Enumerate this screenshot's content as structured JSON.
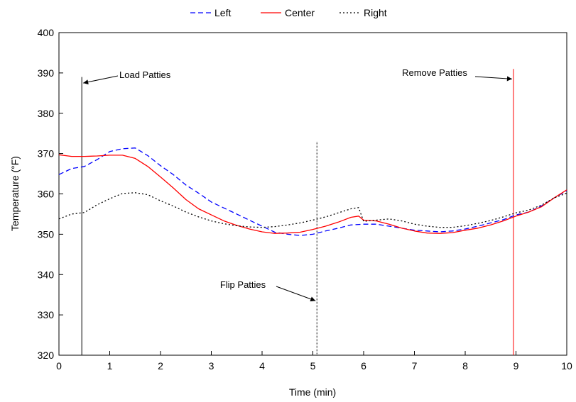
{
  "chart_data": {
    "type": "line",
    "xlabel": "Time (min)",
    "ylabel": "Temperature (°F)",
    "xlim": [
      0,
      10
    ],
    "ylim": [
      320,
      400
    ],
    "xticks": [
      0,
      1,
      2,
      3,
      4,
      5,
      6,
      7,
      8,
      9,
      10
    ],
    "yticks": [
      320,
      330,
      340,
      350,
      360,
      370,
      380,
      390,
      400
    ],
    "grid": false,
    "legend_position": "top-center",
    "series": [
      {
        "name": "Left",
        "color": "#0000ff",
        "dash": "dashed",
        "points": [
          [
            0,
            364.8
          ],
          [
            0.25,
            366.3
          ],
          [
            0.5,
            366.8
          ],
          [
            0.75,
            368.5
          ],
          [
            1.0,
            370.5
          ],
          [
            1.25,
            371.2
          ],
          [
            1.5,
            371.4
          ],
          [
            1.75,
            369.5
          ],
          [
            2.0,
            367.0
          ],
          [
            2.25,
            364.8
          ],
          [
            2.5,
            362.2
          ],
          [
            2.75,
            360.2
          ],
          [
            3.0,
            358.0
          ],
          [
            3.25,
            356.5
          ],
          [
            3.5,
            355.0
          ],
          [
            3.75,
            353.5
          ],
          [
            4.0,
            352.0
          ],
          [
            4.25,
            350.5
          ],
          [
            4.5,
            350.0
          ],
          [
            4.75,
            349.7
          ],
          [
            5.0,
            350.0
          ],
          [
            5.25,
            350.8
          ],
          [
            5.5,
            351.5
          ],
          [
            5.75,
            352.3
          ],
          [
            6.0,
            352.5
          ],
          [
            6.25,
            352.5
          ],
          [
            6.5,
            352.0
          ],
          [
            6.75,
            351.5
          ],
          [
            7.0,
            351.0
          ],
          [
            7.25,
            350.8
          ],
          [
            7.5,
            350.6
          ],
          [
            7.75,
            350.8
          ],
          [
            8.0,
            351.3
          ],
          [
            8.25,
            352.0
          ],
          [
            8.5,
            352.8
          ],
          [
            8.75,
            353.6
          ],
          [
            9.0,
            354.8
          ],
          [
            9.25,
            355.5
          ],
          [
            9.5,
            357.0
          ],
          [
            9.75,
            359.0
          ],
          [
            10.0,
            360.8
          ]
        ]
      },
      {
        "name": "Center",
        "color": "#ff0000",
        "dash": "solid",
        "points": [
          [
            0,
            369.7
          ],
          [
            0.25,
            369.3
          ],
          [
            0.5,
            369.3
          ],
          [
            0.75,
            369.4
          ],
          [
            1.0,
            369.6
          ],
          [
            1.25,
            369.6
          ],
          [
            1.5,
            368.8
          ],
          [
            1.75,
            366.8
          ],
          [
            2.0,
            364.2
          ],
          [
            2.25,
            361.5
          ],
          [
            2.5,
            358.6
          ],
          [
            2.75,
            356.3
          ],
          [
            3.0,
            354.8
          ],
          [
            3.25,
            353.3
          ],
          [
            3.5,
            352.2
          ],
          [
            3.75,
            351.3
          ],
          [
            4.0,
            350.6
          ],
          [
            4.25,
            350.2
          ],
          [
            4.5,
            350.3
          ],
          [
            4.75,
            350.5
          ],
          [
            5.0,
            351.2
          ],
          [
            5.25,
            352.0
          ],
          [
            5.5,
            353.0
          ],
          [
            5.75,
            354.2
          ],
          [
            5.9,
            354.5
          ],
          [
            6.0,
            353.5
          ],
          [
            6.25,
            353.3
          ],
          [
            6.5,
            352.5
          ],
          [
            6.75,
            351.5
          ],
          [
            7.0,
            350.8
          ],
          [
            7.25,
            350.3
          ],
          [
            7.5,
            350.2
          ],
          [
            7.75,
            350.4
          ],
          [
            8.0,
            351.0
          ],
          [
            8.25,
            351.5
          ],
          [
            8.5,
            352.3
          ],
          [
            8.75,
            353.3
          ],
          [
            9.0,
            354.5
          ],
          [
            9.25,
            355.5
          ],
          [
            9.5,
            356.8
          ],
          [
            9.75,
            359.0
          ],
          [
            10.0,
            361.0
          ]
        ]
      },
      {
        "name": "Right",
        "color": "#000000",
        "dash": "dotted",
        "points": [
          [
            0,
            353.8
          ],
          [
            0.25,
            355.0
          ],
          [
            0.5,
            355.4
          ],
          [
            0.75,
            357.3
          ],
          [
            1.0,
            358.8
          ],
          [
            1.25,
            360.1
          ],
          [
            1.5,
            360.3
          ],
          [
            1.75,
            359.8
          ],
          [
            2.0,
            358.3
          ],
          [
            2.25,
            357.0
          ],
          [
            2.5,
            355.5
          ],
          [
            2.75,
            354.3
          ],
          [
            3.0,
            353.3
          ],
          [
            3.25,
            352.6
          ],
          [
            3.5,
            352.1
          ],
          [
            3.75,
            351.8
          ],
          [
            4.0,
            351.7
          ],
          [
            4.25,
            351.9
          ],
          [
            4.5,
            352.3
          ],
          [
            4.75,
            352.8
          ],
          [
            5.0,
            353.5
          ],
          [
            5.25,
            354.3
          ],
          [
            5.5,
            355.3
          ],
          [
            5.75,
            356.3
          ],
          [
            5.9,
            356.6
          ],
          [
            6.0,
            353.2
          ],
          [
            6.25,
            353.5
          ],
          [
            6.5,
            353.8
          ],
          [
            6.75,
            353.3
          ],
          [
            7.0,
            352.5
          ],
          [
            7.25,
            352.0
          ],
          [
            7.5,
            351.7
          ],
          [
            7.75,
            351.7
          ],
          [
            8.0,
            352.1
          ],
          [
            8.25,
            352.7
          ],
          [
            8.5,
            353.4
          ],
          [
            8.75,
            354.3
          ],
          [
            9.0,
            355.3
          ],
          [
            9.25,
            356.0
          ],
          [
            9.5,
            357.2
          ],
          [
            9.75,
            359.0
          ],
          [
            10.0,
            360.2
          ]
        ]
      }
    ],
    "markers": [
      {
        "x": 0.45,
        "y_top": 389,
        "color": "#000000",
        "style": "solid"
      },
      {
        "x": 5.08,
        "y_top": 373,
        "color": "#000000",
        "style": "dotted"
      },
      {
        "x": 8.95,
        "y_top": 391,
        "color": "#ff0000",
        "style": "solid"
      }
    ],
    "annotations": [
      {
        "text": "Load Patties",
        "target_x": 0.45,
        "target_y": 387.5
      },
      {
        "text": "Flip Patties",
        "target_x": 5.08,
        "target_y": 333.5
      },
      {
        "text": "Remove Patties",
        "target_x": 8.95,
        "target_y": 388.5
      }
    ]
  }
}
